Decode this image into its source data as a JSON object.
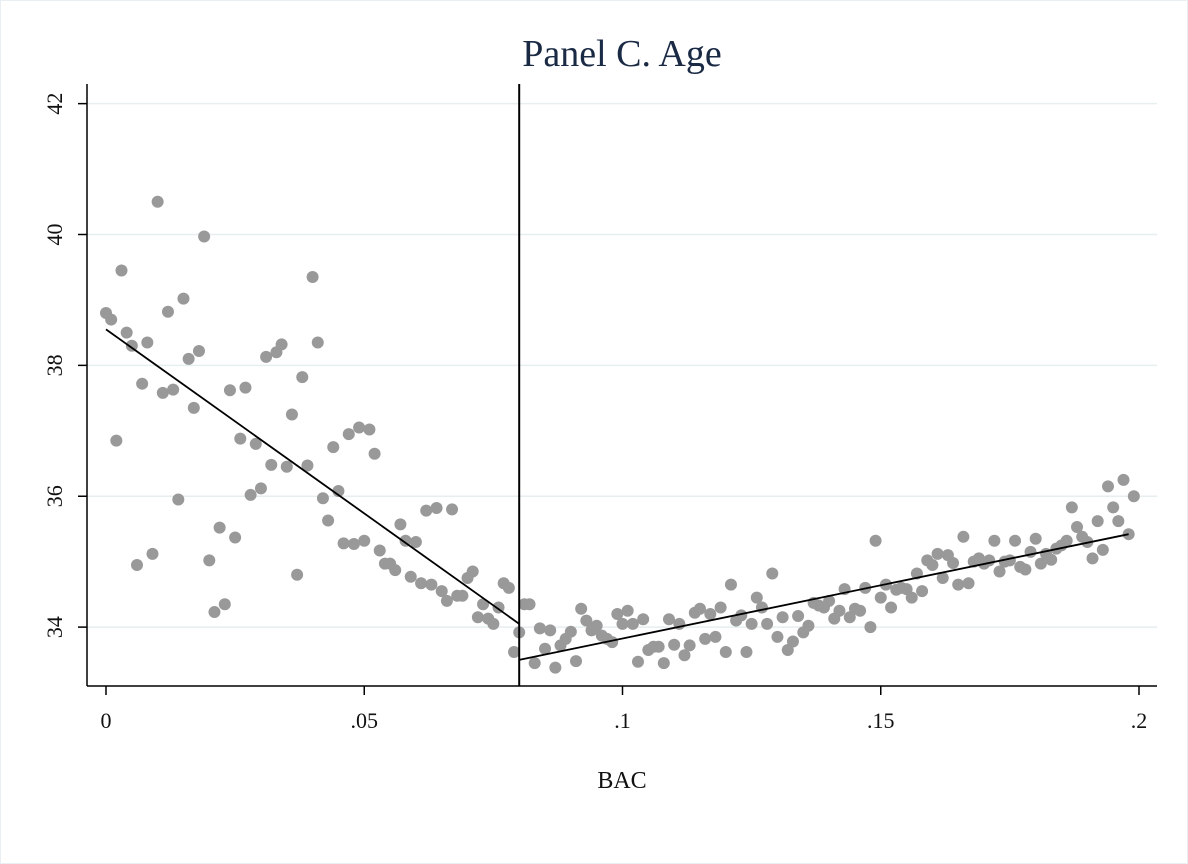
{
  "chart_data": {
    "type": "scatter",
    "title": "Panel C. Age",
    "xlabel": "BAC",
    "ylabel": "",
    "xlim": [
      0,
      0.2
    ],
    "ylim": [
      33.1,
      42.3
    ],
    "xticks": [
      0,
      0.05,
      0.1,
      0.15,
      0.2
    ],
    "xtick_labels": [
      "0",
      ".05",
      ".1",
      ".15",
      ".2"
    ],
    "yticks": [
      34,
      36,
      38,
      40,
      42
    ],
    "ytick_labels": [
      "34",
      "36",
      "38",
      "40",
      "42"
    ],
    "grid": "horizontal",
    "cutoff": 0.08,
    "point_color": "#999999",
    "fit_lines": [
      {
        "x": [
          0,
          0.08
        ],
        "y": [
          38.55,
          34.05
        ]
      },
      {
        "x": [
          0.08,
          0.198
        ],
        "y": [
          33.5,
          35.42
        ]
      }
    ],
    "points": [
      [
        0.0,
        38.8
      ],
      [
        0.001,
        38.7
      ],
      [
        0.002,
        36.85
      ],
      [
        0.003,
        39.45
      ],
      [
        0.004,
        38.5
      ],
      [
        0.005,
        38.3
      ],
      [
        0.006,
        34.95
      ],
      [
        0.007,
        37.72
      ],
      [
        0.008,
        38.35
      ],
      [
        0.009,
        35.12
      ],
      [
        0.01,
        40.5
      ],
      [
        0.011,
        37.58
      ],
      [
        0.012,
        38.82
      ],
      [
        0.013,
        37.63
      ],
      [
        0.014,
        35.95
      ],
      [
        0.015,
        39.02
      ],
      [
        0.016,
        38.1
      ],
      [
        0.017,
        37.35
      ],
      [
        0.018,
        38.22
      ],
      [
        0.019,
        39.97
      ],
      [
        0.02,
        35.02
      ],
      [
        0.021,
        34.23
      ],
      [
        0.022,
        35.52
      ],
      [
        0.023,
        34.35
      ],
      [
        0.024,
        37.62
      ],
      [
        0.025,
        35.37
      ],
      [
        0.026,
        36.88
      ],
      [
        0.027,
        37.66
      ],
      [
        0.028,
        36.02
      ],
      [
        0.029,
        36.8
      ],
      [
        0.03,
        36.12
      ],
      [
        0.031,
        38.13
      ],
      [
        0.032,
        36.48
      ],
      [
        0.033,
        38.2
      ],
      [
        0.034,
        38.32
      ],
      [
        0.035,
        36.45
      ],
      [
        0.036,
        37.25
      ],
      [
        0.037,
        34.8
      ],
      [
        0.038,
        37.82
      ],
      [
        0.039,
        36.47
      ],
      [
        0.04,
        39.35
      ],
      [
        0.041,
        38.35
      ],
      [
        0.042,
        35.97
      ],
      [
        0.043,
        35.63
      ],
      [
        0.044,
        36.75
      ],
      [
        0.045,
        36.08
      ],
      [
        0.046,
        35.28
      ],
      [
        0.047,
        36.95
      ],
      [
        0.048,
        35.27
      ],
      [
        0.049,
        37.05
      ],
      [
        0.05,
        35.32
      ],
      [
        0.051,
        37.02
      ],
      [
        0.052,
        36.65
      ],
      [
        0.053,
        35.17
      ],
      [
        0.054,
        34.97
      ],
      [
        0.055,
        34.97
      ],
      [
        0.056,
        34.87
      ],
      [
        0.057,
        35.57
      ],
      [
        0.058,
        35.32
      ],
      [
        0.059,
        34.77
      ],
      [
        0.06,
        35.3
      ],
      [
        0.061,
        34.67
      ],
      [
        0.062,
        35.78
      ],
      [
        0.063,
        34.65
      ],
      [
        0.064,
        35.82
      ],
      [
        0.065,
        34.55
      ],
      [
        0.066,
        34.4
      ],
      [
        0.067,
        35.8
      ],
      [
        0.068,
        34.48
      ],
      [
        0.069,
        34.48
      ],
      [
        0.07,
        34.75
      ],
      [
        0.071,
        34.85
      ],
      [
        0.072,
        34.15
      ],
      [
        0.073,
        34.35
      ],
      [
        0.074,
        34.13
      ],
      [
        0.075,
        34.05
      ],
      [
        0.076,
        34.3
      ],
      [
        0.077,
        34.67
      ],
      [
        0.078,
        34.6
      ],
      [
        0.079,
        33.62
      ],
      [
        0.08,
        33.92
      ],
      [
        0.081,
        34.35
      ],
      [
        0.082,
        34.35
      ],
      [
        0.083,
        33.45
      ],
      [
        0.084,
        33.98
      ],
      [
        0.085,
        33.67
      ],
      [
        0.086,
        33.95
      ],
      [
        0.087,
        33.38
      ],
      [
        0.088,
        33.72
      ],
      [
        0.089,
        33.82
      ],
      [
        0.09,
        33.93
      ],
      [
        0.091,
        33.48
      ],
      [
        0.092,
        34.28
      ],
      [
        0.093,
        34.1
      ],
      [
        0.094,
        33.95
      ],
      [
        0.095,
        34.02
      ],
      [
        0.096,
        33.87
      ],
      [
        0.097,
        33.82
      ],
      [
        0.098,
        33.77
      ],
      [
        0.099,
        34.2
      ],
      [
        0.1,
        34.05
      ],
      [
        0.101,
        34.25
      ],
      [
        0.102,
        34.05
      ],
      [
        0.103,
        33.47
      ],
      [
        0.104,
        34.12
      ],
      [
        0.105,
        33.65
      ],
      [
        0.106,
        33.7
      ],
      [
        0.107,
        33.7
      ],
      [
        0.108,
        33.45
      ],
      [
        0.109,
        34.12
      ],
      [
        0.11,
        33.73
      ],
      [
        0.111,
        34.05
      ],
      [
        0.112,
        33.57
      ],
      [
        0.113,
        33.72
      ],
      [
        0.114,
        34.22
      ],
      [
        0.115,
        34.28
      ],
      [
        0.116,
        33.82
      ],
      [
        0.117,
        34.2
      ],
      [
        0.118,
        33.85
      ],
      [
        0.119,
        34.3
      ],
      [
        0.12,
        33.62
      ],
      [
        0.121,
        34.65
      ],
      [
        0.122,
        34.1
      ],
      [
        0.123,
        34.18
      ],
      [
        0.124,
        33.62
      ],
      [
        0.125,
        34.05
      ],
      [
        0.126,
        34.45
      ],
      [
        0.127,
        34.3
      ],
      [
        0.128,
        34.05
      ],
      [
        0.129,
        34.82
      ],
      [
        0.13,
        33.85
      ],
      [
        0.131,
        34.15
      ],
      [
        0.132,
        33.65
      ],
      [
        0.133,
        33.78
      ],
      [
        0.134,
        34.17
      ],
      [
        0.135,
        33.92
      ],
      [
        0.136,
        34.02
      ],
      [
        0.137,
        34.37
      ],
      [
        0.138,
        34.33
      ],
      [
        0.139,
        34.3
      ],
      [
        0.14,
        34.4
      ],
      [
        0.141,
        34.13
      ],
      [
        0.142,
        34.25
      ],
      [
        0.143,
        34.58
      ],
      [
        0.144,
        34.15
      ],
      [
        0.145,
        34.28
      ],
      [
        0.146,
        34.25
      ],
      [
        0.147,
        34.6
      ],
      [
        0.148,
        34.0
      ],
      [
        0.149,
        35.32
      ],
      [
        0.15,
        34.45
      ],
      [
        0.151,
        34.65
      ],
      [
        0.152,
        34.3
      ],
      [
        0.153,
        34.57
      ],
      [
        0.154,
        34.6
      ],
      [
        0.155,
        34.58
      ],
      [
        0.156,
        34.45
      ],
      [
        0.157,
        34.82
      ],
      [
        0.158,
        34.55
      ],
      [
        0.159,
        35.02
      ],
      [
        0.16,
        34.95
      ],
      [
        0.161,
        35.12
      ],
      [
        0.162,
        34.75
      ],
      [
        0.163,
        35.1
      ],
      [
        0.164,
        34.98
      ],
      [
        0.165,
        34.65
      ],
      [
        0.166,
        35.38
      ],
      [
        0.167,
        34.67
      ],
      [
        0.168,
        35.0
      ],
      [
        0.169,
        35.05
      ],
      [
        0.17,
        34.97
      ],
      [
        0.171,
        35.02
      ],
      [
        0.172,
        35.32
      ],
      [
        0.173,
        34.85
      ],
      [
        0.174,
        35.0
      ],
      [
        0.175,
        35.02
      ],
      [
        0.176,
        35.32
      ],
      [
        0.177,
        34.92
      ],
      [
        0.178,
        34.88
      ],
      [
        0.179,
        35.15
      ],
      [
        0.18,
        35.35
      ],
      [
        0.181,
        34.97
      ],
      [
        0.182,
        35.12
      ],
      [
        0.183,
        35.03
      ],
      [
        0.184,
        35.2
      ],
      [
        0.185,
        35.25
      ],
      [
        0.186,
        35.32
      ],
      [
        0.187,
        35.83
      ],
      [
        0.188,
        35.53
      ],
      [
        0.189,
        35.38
      ],
      [
        0.19,
        35.3
      ],
      [
        0.191,
        35.05
      ],
      [
        0.192,
        35.62
      ],
      [
        0.193,
        35.18
      ],
      [
        0.194,
        36.15
      ],
      [
        0.195,
        35.83
      ],
      [
        0.196,
        35.62
      ],
      [
        0.197,
        36.25
      ],
      [
        0.198,
        35.42
      ],
      [
        0.199,
        36.0
      ]
    ]
  }
}
